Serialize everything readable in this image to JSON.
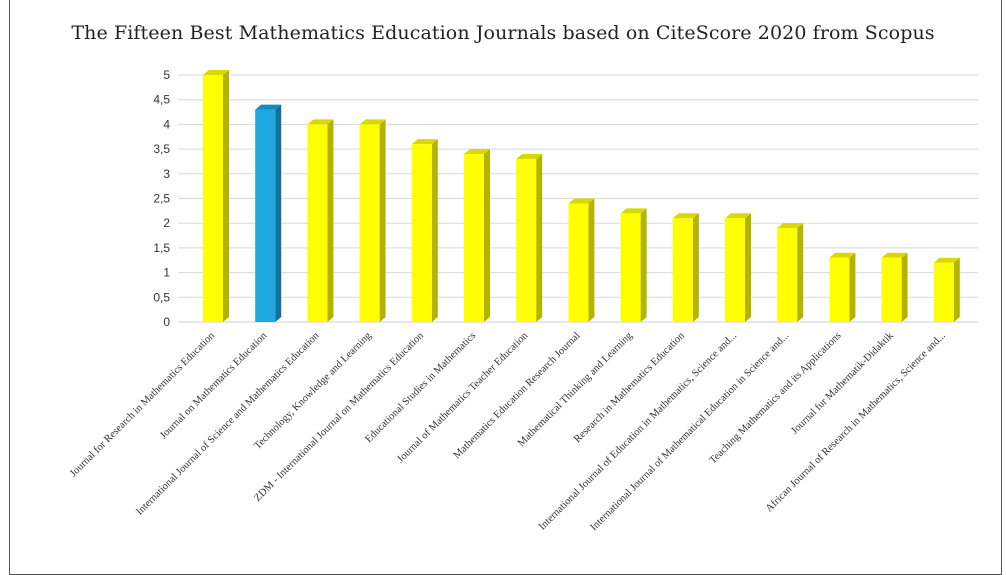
{
  "chart_data": {
    "type": "bar",
    "title": "The Fifteen Best Mathematics Education Journals based on CiteScore 2020 from Scopus",
    "xlabel": "",
    "ylabel": "",
    "ylim": [
      0,
      5
    ],
    "yticks": [
      "0",
      "0,5",
      "1",
      "1,5",
      "2",
      "2,5",
      "3",
      "3,5",
      "4",
      "4,5",
      "5"
    ],
    "categories": [
      "Journal for Research in Mathematics Education",
      "Journal on Mathematics Education",
      "International Journal of Science and Mathematics Education",
      "Technology, Knowledge and Learning",
      "ZDM - International Journal on Mathematics Education",
      "Educational Studies in Mathematics",
      "Journal of Mathematics Teacher Education",
      "Mathematics Education Research Journal",
      "Mathematical Thinking and Learning",
      "Research in Mathematics Education",
      "International Journal of Education in Mathematics, Science and...",
      "International Journal of Mathematical Education in Science and...",
      "Teaching Mathematics and its Applications",
      "Journal fur Mathematik-Didaktik",
      "African Journal of Research in Mathematics, Science and..."
    ],
    "values": [
      5.0,
      4.3,
      4.0,
      4.0,
      3.6,
      3.4,
      3.3,
      2.4,
      2.2,
      2.1,
      2.1,
      1.9,
      1.3,
      1.3,
      1.2
    ],
    "highlight_index": 1,
    "colors": {
      "bar": "#ffff00",
      "bar_side": "#b3b300",
      "bar_top": "#d9d900",
      "highlight": "#1ea7e1",
      "highlight_side": "#0c6f9e",
      "highlight_top": "#148bbf",
      "grid": "#d9d9d9"
    },
    "grid": true,
    "legend": "none"
  }
}
